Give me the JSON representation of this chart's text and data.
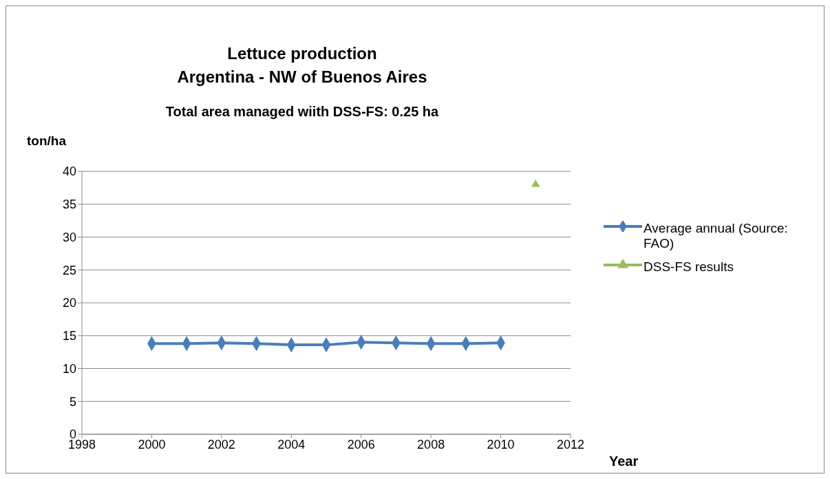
{
  "chart_data": {
    "type": "line",
    "title": "Lettuce production",
    "subtitle": "Argentina - NW of Buenos Aires",
    "annotations": [
      "Total area managed wiith DSS-FS: 0.25 ha"
    ],
    "xlabel": "Year",
    "ylabel": "ton/ha",
    "series": [
      {
        "name": "Average annual (Source: FAO)",
        "color": "#4a7ebb",
        "marker": "diamond",
        "x": [
          2000,
          2001,
          2002,
          2003,
          2004,
          2005,
          2006,
          2007,
          2008,
          2009,
          2010
        ],
        "values": [
          13.8,
          13.8,
          13.9,
          13.8,
          13.6,
          13.6,
          14.0,
          13.9,
          13.8,
          13.8,
          13.9
        ]
      },
      {
        "name": "DSS-FS results",
        "type": "scatter",
        "color": "#9bbb59",
        "marker": "triangle",
        "x": [
          2011
        ],
        "values": [
          38
        ]
      }
    ],
    "xlim": [
      1998,
      2012
    ],
    "xticks": [
      1998,
      2000,
      2002,
      2004,
      2006,
      2008,
      2010,
      2012
    ],
    "ylim": [
      0,
      40
    ],
    "yticks": [
      0,
      5,
      10,
      15,
      20,
      25,
      30,
      35,
      40
    ],
    "grid": "y",
    "legend": "right"
  }
}
